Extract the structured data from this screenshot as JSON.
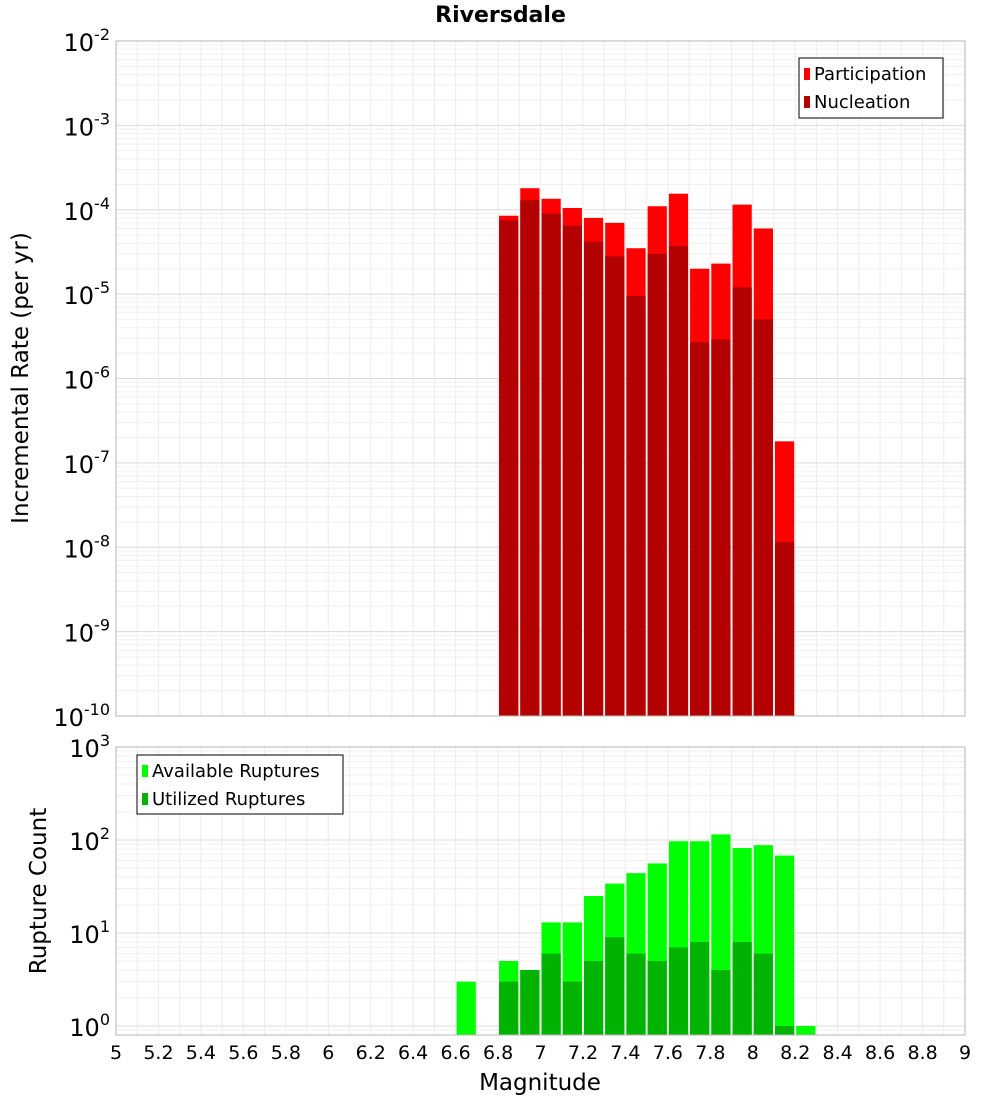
{
  "chart_data": [
    {
      "panel": "top",
      "type": "bar",
      "title": "Riversdale",
      "xlabel": "",
      "ylabel": "Incremental Rate (per yr)",
      "yscale": "log",
      "ylim": [
        1e-10,
        0.01
      ],
      "xlim": [
        5,
        9
      ],
      "y_tick_labels": [
        {
          "base": "10",
          "exp": "-10"
        },
        {
          "base": "10",
          "exp": "-9"
        },
        {
          "base": "10",
          "exp": "-8"
        },
        {
          "base": "10",
          "exp": "-7"
        },
        {
          "base": "10",
          "exp": "-6"
        },
        {
          "base": "10",
          "exp": "-5"
        },
        {
          "base": "10",
          "exp": "-4"
        },
        {
          "base": "10",
          "exp": "-3"
        },
        {
          "base": "10",
          "exp": "-2"
        }
      ],
      "legend_position": "top-right",
      "x": [
        6.85,
        6.95,
        7.05,
        7.15,
        7.25,
        7.35,
        7.45,
        7.55,
        7.65,
        7.75,
        7.85,
        7.95,
        8.05,
        8.15
      ],
      "series": [
        {
          "name": "Participation",
          "color": "#ff0000",
          "values": [
            8.5e-05,
            0.00018,
            0.000135,
            0.000105,
            8e-05,
            7e-05,
            3.5e-05,
            0.00011,
            0.000155,
            2e-05,
            2.3e-05,
            0.000115,
            6e-05,
            1.8e-07
          ]
        },
        {
          "name": "Nucleation",
          "color": "#b30000",
          "values": [
            7.5e-05,
            0.00013,
            9e-05,
            6.5e-05,
            4.2e-05,
            2.8e-05,
            9.5e-06,
            3e-05,
            3.7e-05,
            2.7e-06,
            2.9e-06,
            1.2e-05,
            5e-06,
            1.15e-08
          ]
        }
      ]
    },
    {
      "panel": "bottom",
      "type": "bar",
      "title": "",
      "xlabel": "Magnitude",
      "ylabel": "Rupture Count",
      "yscale": "log",
      "ylim": [
        0.8,
        1000
      ],
      "xlim": [
        5,
        9
      ],
      "x_tick_labels": [
        "5",
        "5.2",
        "5.4",
        "5.6",
        "5.8",
        "6",
        "6.2",
        "6.4",
        "6.6",
        "6.8",
        "7",
        "7.2",
        "7.4",
        "7.6",
        "7.8",
        "8",
        "8.2",
        "8.4",
        "8.6",
        "8.8",
        "9"
      ],
      "y_tick_labels": [
        {
          "base": "10",
          "exp": "0"
        },
        {
          "base": "10",
          "exp": "1"
        },
        {
          "base": "10",
          "exp": "2"
        },
        {
          "base": "10",
          "exp": "3"
        }
      ],
      "legend_position": "top-left",
      "x": [
        6.65,
        6.85,
        6.95,
        7.05,
        7.15,
        7.25,
        7.35,
        7.45,
        7.55,
        7.65,
        7.75,
        7.85,
        7.95,
        8.05,
        8.15,
        8.25
      ],
      "series": [
        {
          "name": "Available Ruptures",
          "color": "#00ff00",
          "values": [
            3,
            5,
            4,
            13,
            13,
            25,
            34,
            44,
            56,
            97,
            97,
            115,
            82,
            88,
            68,
            1
          ]
        },
        {
          "name": "Utilized Ruptures",
          "color": "#00b300",
          "values": [
            0,
            3,
            4,
            6,
            3,
            5,
            9,
            6,
            5,
            7,
            8,
            4,
            8,
            6,
            1,
            0
          ]
        }
      ]
    }
  ]
}
